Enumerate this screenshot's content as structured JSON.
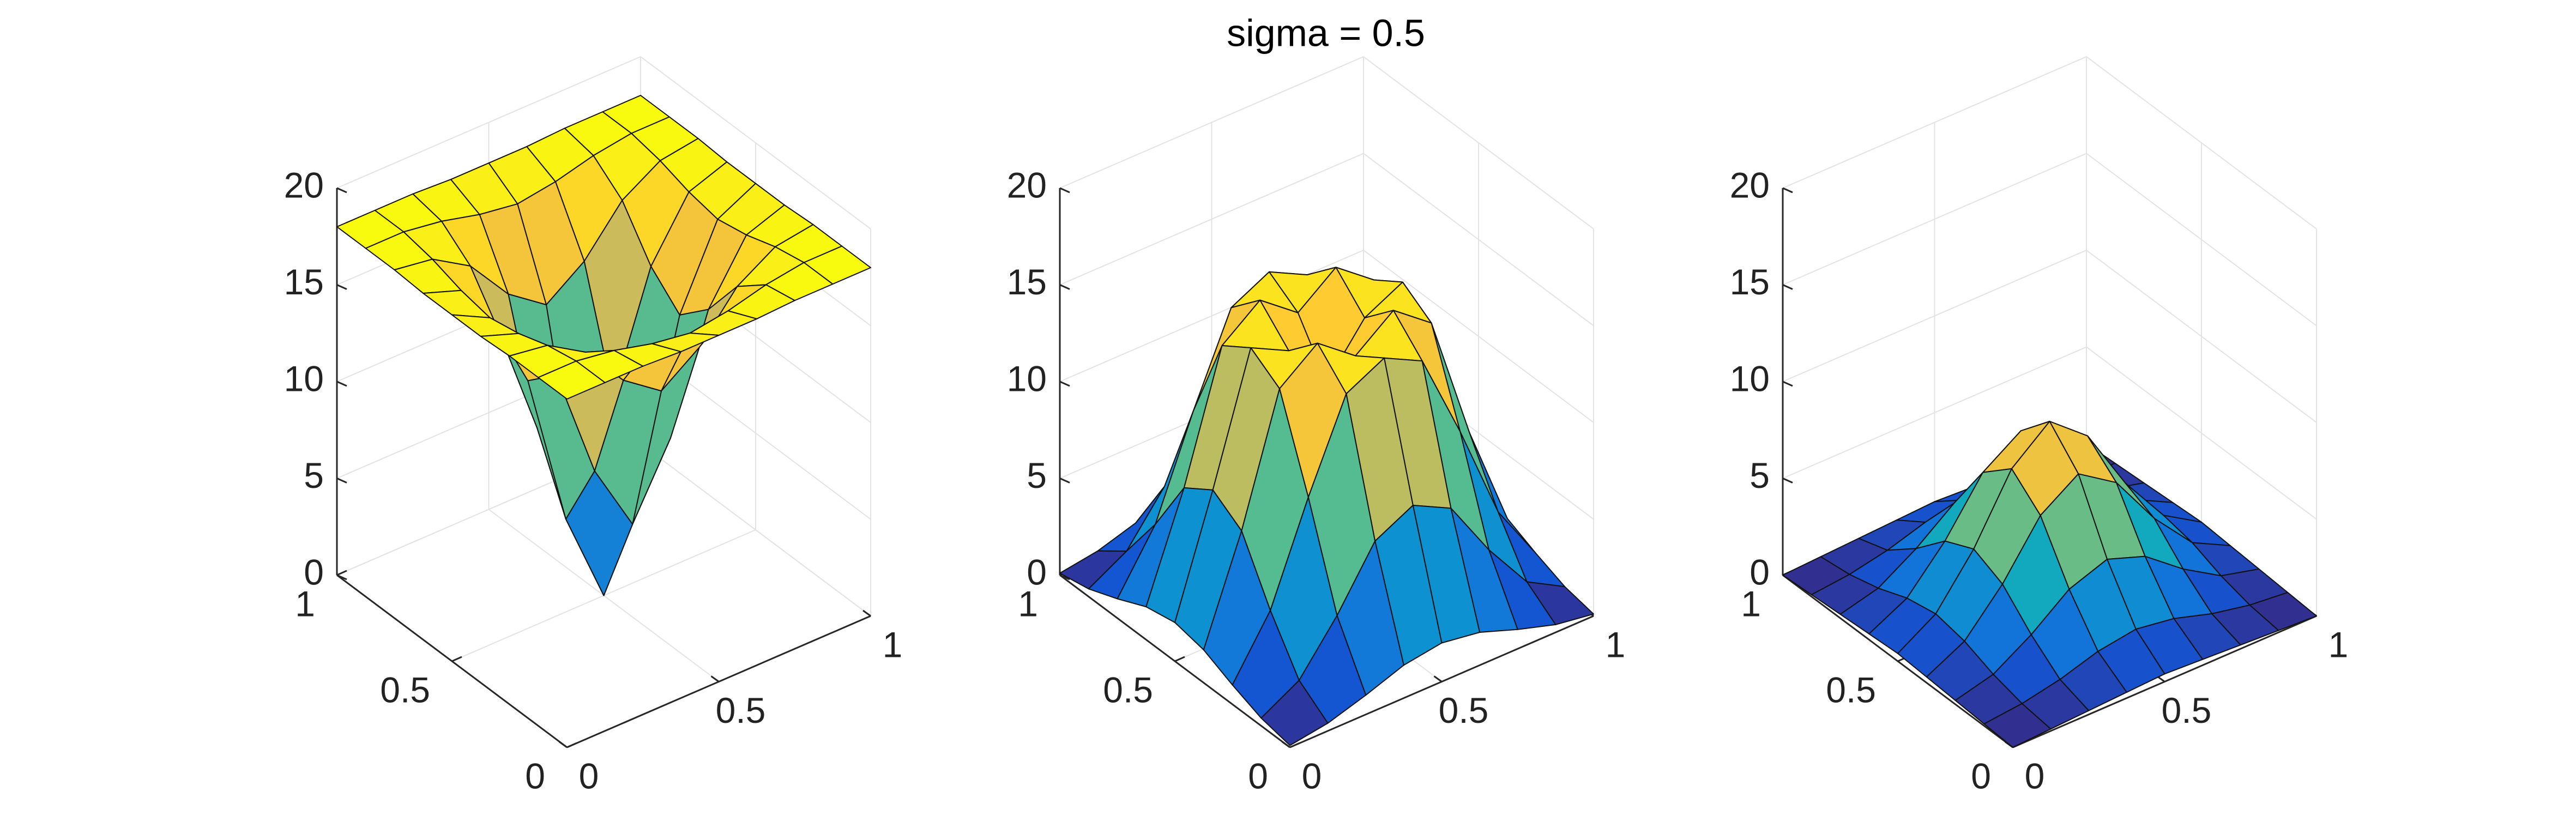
{
  "title": "sigma = 0.5",
  "chart_data": [
    {
      "type": "surface",
      "colormap": [
        "#352a87",
        "#0f5cdd",
        "#1481d6",
        "#06a4ca",
        "#2eb7a4",
        "#87bf77",
        "#d1bb59",
        "#fec832",
        "#f9fb0e"
      ],
      "x": [
        0,
        0.125,
        0.25,
        0.375,
        0.5,
        0.625,
        0.75,
        0.875,
        1
      ],
      "y": [
        0,
        0.125,
        0.25,
        0.375,
        0.5,
        0.625,
        0.75,
        0.875,
        1
      ],
      "z": [
        [
          18,
          18,
          18,
          17.9,
          17.9,
          17.9,
          18,
          18,
          18
        ],
        [
          18,
          18,
          17.7,
          17.2,
          16.9,
          17.2,
          17.7,
          18,
          18
        ],
        [
          18,
          17.7,
          16.5,
          14.2,
          12.8,
          14.2,
          16.5,
          17.7,
          18
        ],
        [
          17.9,
          17.2,
          14.2,
          8.4,
          4.8,
          8.4,
          14.2,
          17.2,
          17.9
        ],
        [
          17.9,
          16.9,
          12.8,
          4.8,
          0,
          4.8,
          12.8,
          16.9,
          17.9
        ],
        [
          17.9,
          17.2,
          14.2,
          8.4,
          4.8,
          8.4,
          14.2,
          17.2,
          17.9
        ],
        [
          18,
          17.7,
          16.5,
          14.2,
          12.8,
          14.2,
          16.5,
          17.7,
          18
        ],
        [
          18,
          18,
          17.7,
          17.2,
          16.9,
          17.2,
          17.7,
          18,
          18
        ],
        [
          18,
          18,
          18,
          17.9,
          17.9,
          17.9,
          18,
          18,
          18
        ]
      ],
      "xlim": [
        0,
        1
      ],
      "ylim": [
        0,
        1
      ],
      "zlim": [
        0,
        20
      ],
      "xticks": [
        0,
        0.5,
        1
      ],
      "yticks": [
        0,
        0.5,
        1
      ],
      "zticks": [
        0,
        5,
        10,
        15,
        20
      ],
      "grid": true
    },
    {
      "type": "surface",
      "colormap": [
        "#352a87",
        "#0f5cdd",
        "#1481d6",
        "#06a4ca",
        "#2eb7a4",
        "#87bf77",
        "#d1bb59",
        "#fec832",
        "#f9fb0e"
      ],
      "x": [
        0,
        0.125,
        0.25,
        0.375,
        0.5,
        0.625,
        0.75,
        0.875,
        1
      ],
      "y": [
        0,
        0.125,
        0.25,
        0.375,
        0.5,
        0.625,
        0.75,
        0.875,
        1
      ],
      "z": [
        [
          0.1,
          0.4,
          1,
          1.7,
          2,
          1.7,
          1,
          0.4,
          0.1
        ],
        [
          0.4,
          1.5,
          4,
          7,
          8,
          7,
          4,
          1.5,
          0.4
        ],
        [
          1,
          4,
          9,
          13.5,
          14.5,
          13.5,
          9,
          4,
          1
        ],
        [
          1.7,
          7,
          13.5,
          15,
          13.5,
          15,
          13.5,
          7,
          1.7
        ],
        [
          2,
          8,
          14.5,
          13.5,
          11,
          13.5,
          14.5,
          8,
          2
        ],
        [
          1.7,
          7,
          13.5,
          15,
          13.5,
          15,
          13.5,
          7,
          1.7
        ],
        [
          1,
          4,
          9,
          13.5,
          14.5,
          13.5,
          9,
          4,
          1
        ],
        [
          0.4,
          1.5,
          4,
          7,
          8,
          7,
          4,
          1.5,
          0.4
        ],
        [
          0.1,
          0.4,
          1,
          1.7,
          2,
          1.7,
          1,
          0.4,
          0.1
        ]
      ],
      "xlim": [
        0,
        1
      ],
      "ylim": [
        0,
        1
      ],
      "zlim": [
        0,
        20
      ],
      "xticks": [
        0,
        0.5,
        1
      ],
      "yticks": [
        0,
        0.5,
        1
      ],
      "zticks": [
        0,
        5,
        10,
        15,
        20
      ],
      "grid": true
    },
    {
      "type": "surface",
      "colormap": [
        "#352a87",
        "#0f5cdd",
        "#1481d6",
        "#06a4ca",
        "#2eb7a4",
        "#87bf77",
        "#d1bb59",
        "#fec832",
        "#f9fb0e"
      ],
      "x": [
        0,
        0.125,
        0.25,
        0.375,
        0.5,
        0.625,
        0.75,
        0.875,
        1
      ],
      "y": [
        0,
        0.125,
        0.25,
        0.375,
        0.5,
        0.625,
        0.75,
        0.875,
        1
      ],
      "z": [
        [
          0,
          0.1,
          0.2,
          0.3,
          0.4,
          0.3,
          0.2,
          0.1,
          0
        ],
        [
          0.1,
          0.3,
          0.7,
          1.3,
          1.6,
          1.3,
          0.7,
          0.3,
          0.1
        ],
        [
          0.2,
          0.7,
          1.9,
          3.4,
          4.1,
          3.4,
          1.9,
          0.7,
          0.2
        ],
        [
          0.3,
          1.3,
          3.4,
          6.1,
          7.4,
          6.1,
          3.4,
          1.3,
          0.3
        ],
        [
          0.4,
          1.6,
          4.1,
          7.4,
          9,
          7.4,
          4.1,
          1.6,
          0.4
        ],
        [
          0.3,
          1.3,
          3.4,
          6.1,
          7.4,
          6.1,
          3.4,
          1.3,
          0.3
        ],
        [
          0.2,
          0.7,
          1.9,
          3.4,
          4.1,
          3.4,
          1.9,
          0.7,
          0.2
        ],
        [
          0.1,
          0.3,
          0.7,
          1.3,
          1.6,
          1.3,
          0.7,
          0.3,
          0.1
        ],
        [
          0,
          0.1,
          0.2,
          0.3,
          0.4,
          0.3,
          0.2,
          0.1,
          0
        ]
      ],
      "xlim": [
        0,
        1
      ],
      "ylim": [
        0,
        1
      ],
      "zlim": [
        0,
        20
      ],
      "xticks": [
        0,
        0.5,
        1
      ],
      "yticks": [
        0,
        0.5,
        1
      ],
      "zticks": [
        0,
        5,
        10,
        15,
        20
      ],
      "grid": true
    }
  ]
}
